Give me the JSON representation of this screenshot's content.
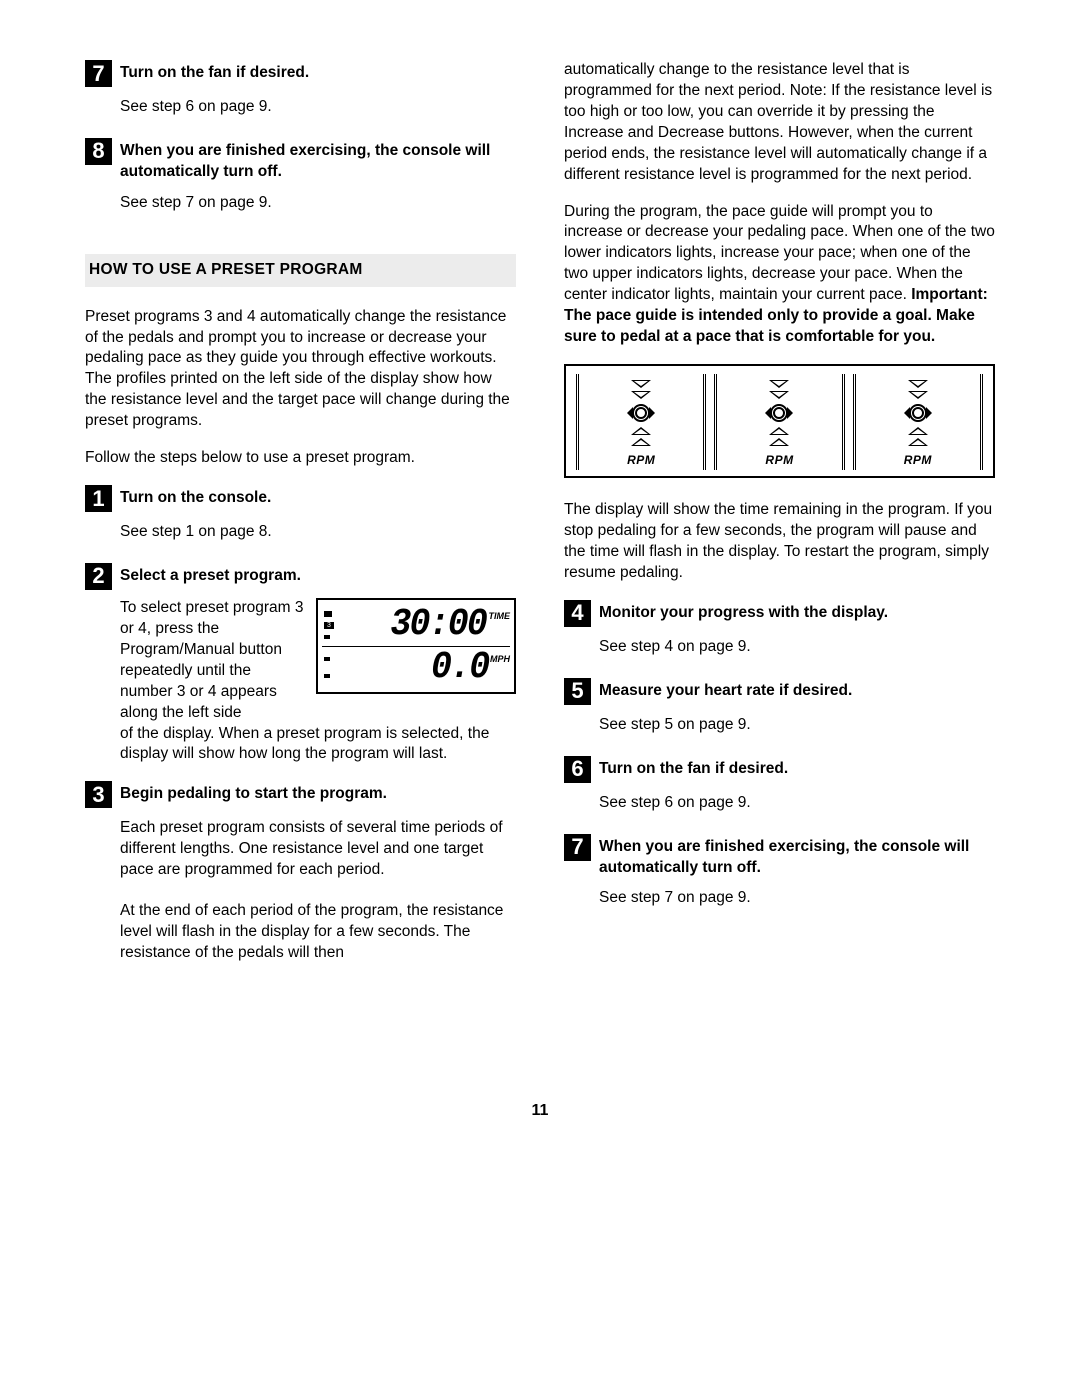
{
  "page_number": "11",
  "colors": {
    "section_header_bg": "#ececec",
    "text": "#000000",
    "step_badge_bg": "#000000",
    "step_badge_fg": "#ffffff",
    "page_bg": "#ffffff"
  },
  "typography": {
    "body_fontsize_pt": 11.5,
    "step_num_fontsize_pt": 16,
    "font_family": "Arial"
  },
  "left_column": {
    "top_steps": [
      {
        "num": "7",
        "title": "Turn on the fan if desired.",
        "body": "See step 6 on page 9."
      },
      {
        "num": "8",
        "title": "When you are finished exercising, the console will automatically turn off.",
        "body": "See step 7 on page 9."
      }
    ],
    "section_header": "HOW TO USE A PRESET PROGRAM",
    "intro_p1": "Preset programs 3 and 4 automatically change the resistance of the pedals and prompt you to increase or decrease your pedaling pace as they guide you through effective workouts. The profiles printed on the left side of the display show how the resistance level and the target pace will change during the preset programs.",
    "intro_p2": "Follow the steps below to use a preset program.",
    "preset_steps": {
      "s1": {
        "num": "1",
        "title": "Turn on the console.",
        "body": "See step 1 on page 8."
      },
      "s2": {
        "num": "2",
        "title": "Select a preset program.",
        "side_text": "To select preset program 3 or 4, press the Program/Manual button repeatedly until the number 3 or 4 appears along the left side",
        "lcd": {
          "row1_value": "30:00",
          "row1_label": "TIME",
          "row1_marker": "3",
          "row2_value": "0.0",
          "row2_label": "MPH"
        },
        "cont": "of the display. When a preset program is selected, the display will show how long the program will last."
      },
      "s3": {
        "num": "3",
        "title": "Begin pedaling to start the program.",
        "p1": "Each preset program consists of several time periods of different lengths. One resistance level and one target pace are programmed for each period.",
        "p2": "At the end of each period of the program, the resistance level will flash in the display for a few seconds. The resistance of the pedals will then"
      }
    }
  },
  "right_column": {
    "cont_p1": "automatically change to the resistance level that is programmed for the next period. Note: If the resistance level is too high or too low, you can override it by pressing the Increase and Decrease buttons. However, when the current period ends, the resistance level will automatically change if a different resistance level is programmed for the next period.",
    "cont_p2_plain": "During the program, the pace guide will prompt you to increase or decrease your pedaling pace. When one of the two lower indicators lights, increase your pace; when one of the two upper indicators lights, decrease your pace. When the center indicator lights, maintain your current pace. ",
    "cont_p2_bold": "Important: The pace guide is intended only to provide a goal. Make sure to pedal at a pace that is comfortable for you.",
    "rpm_diagram": {
      "label": "RPM",
      "unit_count": 3
    },
    "cont_p3": "The display will show the time remaining in the program. If you stop pedaling for a few seconds, the program will pause and the time will flash in the display. To restart the program, simply resume pedaling.",
    "steps": [
      {
        "num": "4",
        "title": "Monitor your progress with the display.",
        "body": "See step 4 on page 9."
      },
      {
        "num": "5",
        "title": "Measure your heart rate if desired.",
        "body": "See step 5 on page 9."
      },
      {
        "num": "6",
        "title": "Turn on the fan if desired.",
        "body": "See step 6 on page 9."
      },
      {
        "num": "7",
        "title": "When you are finished exercising, the console will automatically turn off.",
        "body": "See step 7 on page 9."
      }
    ]
  }
}
